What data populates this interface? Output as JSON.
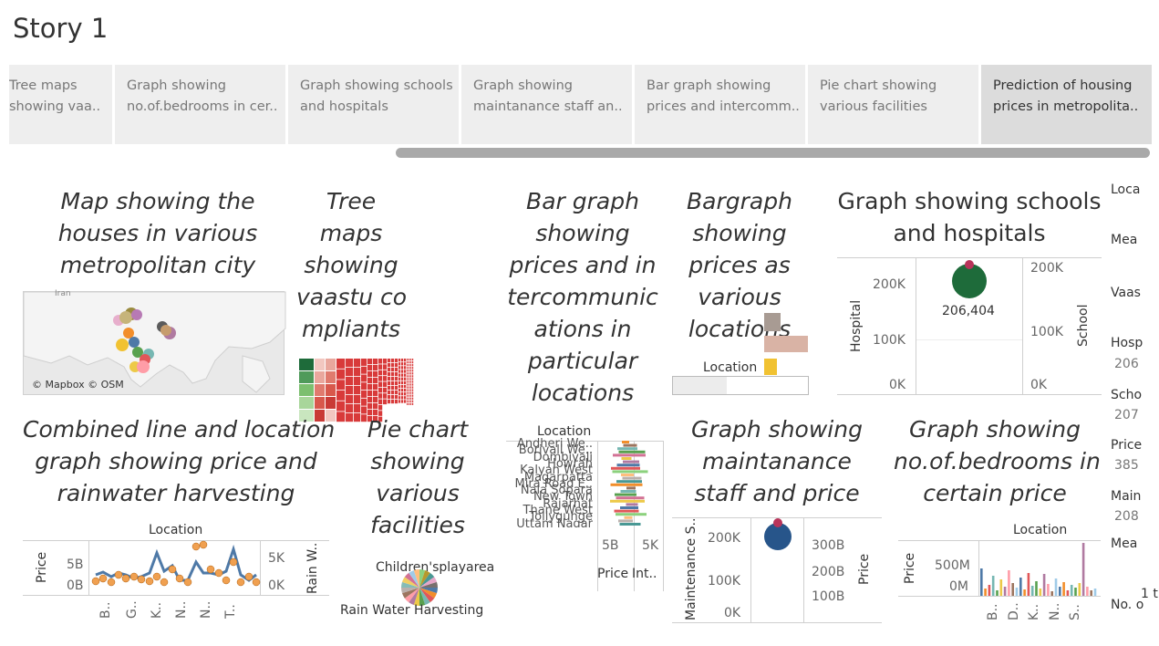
{
  "story": {
    "title": "Story 1"
  },
  "tabs": [
    {
      "l1": "Tree maps",
      "l2": "showing vaa.."
    },
    {
      "l1": "Graph showing",
      "l2": "no.of.bedrooms in cer.."
    },
    {
      "l1": "Graph showing schools",
      "l2": "and hospitals"
    },
    {
      "l1": "Graph showing",
      "l2": "maintanance staff an.."
    },
    {
      "l1": "Bar graph showing",
      "l2": "prices and intercomm.."
    },
    {
      "l1": "Pie chart showing",
      "l2": "various facilities"
    },
    {
      "l1": "Prediction of housing",
      "l2": "prices in metropolita.."
    }
  ],
  "panels": {
    "map": {
      "t1": "Map showing the",
      "t2": "houses in various",
      "t3": "metropolitan city",
      "iran": "Iran",
      "credit": "© Mapbox © OSM"
    },
    "tree": {
      "t1": "Tree",
      "t2": "maps",
      "t3": "showing",
      "t4": "vaastu co",
      "t5": "mpliants"
    },
    "bar": {
      "t1": "Bar graph",
      "t2": "showing",
      "t3": "prices and in",
      "t4": "tercommunic",
      "t5": "ations in",
      "t6": "particular",
      "t7": "locations"
    },
    "bar2": {
      "t1": "Bargraph",
      "t2": "showing",
      "t3": "prices as",
      "t4": "various",
      "t5": "locations",
      "location": "Location"
    },
    "schools": {
      "t1": "Graph showing schools",
      "t2": "and hospitals",
      "hospital": "Hospital",
      "school": "School",
      "y1": [
        "200K",
        "100K",
        "0K"
      ],
      "y2": [
        "200K",
        "100K",
        "0K"
      ],
      "value": "206,404"
    },
    "combined": {
      "t1": "Combined line and location",
      "t2": "graph showing price and",
      "t3": "rainwater harvesting",
      "location": "Location",
      "price": "Price",
      "rain": "Rain W..",
      "y1": [
        "5B",
        "0B"
      ],
      "y2": [
        "5K",
        "0K"
      ],
      "x": [
        "B..",
        "G..",
        "K..",
        "N..",
        "N..",
        "T.."
      ]
    },
    "pie": {
      "t1": "Pie chart",
      "t2": "showing",
      "t3": "various",
      "t4": "facilities",
      "a": "Children'splayarea",
      "b": "Rain Water Harvesting"
    },
    "loc": {
      "location": "Location",
      "names": [
        "Andheri We..",
        "Borivali We..",
        "Dombivali",
        "Howrah",
        "Kalyan West",
        "Magarpatta",
        "Mira Road E..",
        "Nala Sopara",
        "New Town",
        "Rajarhat",
        "Thane West",
        "Tollygunge",
        "Uttam Nagar"
      ],
      "x1": "5B",
      "x2": "5K",
      "price": "Price",
      "int": "Int.."
    },
    "maint": {
      "t1": "Graph showing",
      "t2": "maintanance",
      "t3": "staff and price",
      "ms": "Maintenance S..",
      "price": "Price",
      "y1": [
        "200K",
        "100K",
        "0K"
      ],
      "y2": [
        "300B",
        "200B",
        "100B"
      ]
    },
    "bed": {
      "t1": "Graph showing",
      "t2": "no.of.bedrooms in",
      "t3": "certain price",
      "location": "Location",
      "price": "Price",
      "y": [
        "500M",
        "0M"
      ],
      "x": [
        "B..",
        "D..",
        "K..",
        "N..",
        "S.."
      ]
    }
  },
  "sidebar": {
    "items": [
      {
        "label": "Loca"
      },
      {
        "label": "Mea"
      },
      {
        "label": "Vaas"
      },
      {
        "label": "Hosp",
        "value": "206"
      },
      {
        "label": "Scho",
        "value": "207"
      },
      {
        "label": "Price",
        "value": "385"
      },
      {
        "label": "Main",
        "value": "208"
      },
      {
        "label": "Mea"
      },
      {
        "label": "No. o"
      }
    ],
    "note": "1 t"
  },
  "colors": {
    "tab_bg": "#eeeeee",
    "tab_active": "#dcdcdc",
    "scroll": "#a9a9a9",
    "green": "#1e6b3a",
    "navy": "#27558a",
    "steel": "#4e79a7",
    "orange": "#f28e2b",
    "red": "#d83a3a"
  }
}
